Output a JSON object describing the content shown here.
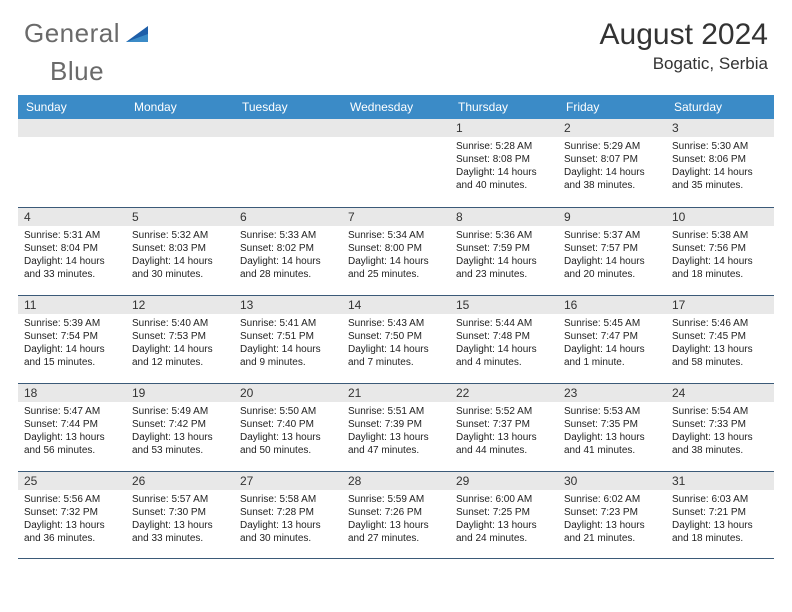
{
  "brand": {
    "word1": "General",
    "word2": "Blue"
  },
  "header": {
    "title": "August 2024",
    "location": "Bogatic, Serbia"
  },
  "colors": {
    "header_blue": "#3b8bc7",
    "cell_gray": "#e8e8e8",
    "border_navy": "#3b5a78",
    "text_dark": "#333333",
    "logo_blue": "#2f7bbf",
    "logo_gray": "#6a6a6a"
  },
  "daysOfWeek": [
    "Sunday",
    "Monday",
    "Tuesday",
    "Wednesday",
    "Thursday",
    "Friday",
    "Saturday"
  ],
  "weeks": [
    [
      {
        "n": "",
        "sr": "",
        "ss": "",
        "dl": ""
      },
      {
        "n": "",
        "sr": "",
        "ss": "",
        "dl": ""
      },
      {
        "n": "",
        "sr": "",
        "ss": "",
        "dl": ""
      },
      {
        "n": "",
        "sr": "",
        "ss": "",
        "dl": ""
      },
      {
        "n": "1",
        "sr": "Sunrise: 5:28 AM",
        "ss": "Sunset: 8:08 PM",
        "dl": "Daylight: 14 hours and 40 minutes."
      },
      {
        "n": "2",
        "sr": "Sunrise: 5:29 AM",
        "ss": "Sunset: 8:07 PM",
        "dl": "Daylight: 14 hours and 38 minutes."
      },
      {
        "n": "3",
        "sr": "Sunrise: 5:30 AM",
        "ss": "Sunset: 8:06 PM",
        "dl": "Daylight: 14 hours and 35 minutes."
      }
    ],
    [
      {
        "n": "4",
        "sr": "Sunrise: 5:31 AM",
        "ss": "Sunset: 8:04 PM",
        "dl": "Daylight: 14 hours and 33 minutes."
      },
      {
        "n": "5",
        "sr": "Sunrise: 5:32 AM",
        "ss": "Sunset: 8:03 PM",
        "dl": "Daylight: 14 hours and 30 minutes."
      },
      {
        "n": "6",
        "sr": "Sunrise: 5:33 AM",
        "ss": "Sunset: 8:02 PM",
        "dl": "Daylight: 14 hours and 28 minutes."
      },
      {
        "n": "7",
        "sr": "Sunrise: 5:34 AM",
        "ss": "Sunset: 8:00 PM",
        "dl": "Daylight: 14 hours and 25 minutes."
      },
      {
        "n": "8",
        "sr": "Sunrise: 5:36 AM",
        "ss": "Sunset: 7:59 PM",
        "dl": "Daylight: 14 hours and 23 minutes."
      },
      {
        "n": "9",
        "sr": "Sunrise: 5:37 AM",
        "ss": "Sunset: 7:57 PM",
        "dl": "Daylight: 14 hours and 20 minutes."
      },
      {
        "n": "10",
        "sr": "Sunrise: 5:38 AM",
        "ss": "Sunset: 7:56 PM",
        "dl": "Daylight: 14 hours and 18 minutes."
      }
    ],
    [
      {
        "n": "11",
        "sr": "Sunrise: 5:39 AM",
        "ss": "Sunset: 7:54 PM",
        "dl": "Daylight: 14 hours and 15 minutes."
      },
      {
        "n": "12",
        "sr": "Sunrise: 5:40 AM",
        "ss": "Sunset: 7:53 PM",
        "dl": "Daylight: 14 hours and 12 minutes."
      },
      {
        "n": "13",
        "sr": "Sunrise: 5:41 AM",
        "ss": "Sunset: 7:51 PM",
        "dl": "Daylight: 14 hours and 9 minutes."
      },
      {
        "n": "14",
        "sr": "Sunrise: 5:43 AM",
        "ss": "Sunset: 7:50 PM",
        "dl": "Daylight: 14 hours and 7 minutes."
      },
      {
        "n": "15",
        "sr": "Sunrise: 5:44 AM",
        "ss": "Sunset: 7:48 PM",
        "dl": "Daylight: 14 hours and 4 minutes."
      },
      {
        "n": "16",
        "sr": "Sunrise: 5:45 AM",
        "ss": "Sunset: 7:47 PM",
        "dl": "Daylight: 14 hours and 1 minute."
      },
      {
        "n": "17",
        "sr": "Sunrise: 5:46 AM",
        "ss": "Sunset: 7:45 PM",
        "dl": "Daylight: 13 hours and 58 minutes."
      }
    ],
    [
      {
        "n": "18",
        "sr": "Sunrise: 5:47 AM",
        "ss": "Sunset: 7:44 PM",
        "dl": "Daylight: 13 hours and 56 minutes."
      },
      {
        "n": "19",
        "sr": "Sunrise: 5:49 AM",
        "ss": "Sunset: 7:42 PM",
        "dl": "Daylight: 13 hours and 53 minutes."
      },
      {
        "n": "20",
        "sr": "Sunrise: 5:50 AM",
        "ss": "Sunset: 7:40 PM",
        "dl": "Daylight: 13 hours and 50 minutes."
      },
      {
        "n": "21",
        "sr": "Sunrise: 5:51 AM",
        "ss": "Sunset: 7:39 PM",
        "dl": "Daylight: 13 hours and 47 minutes."
      },
      {
        "n": "22",
        "sr": "Sunrise: 5:52 AM",
        "ss": "Sunset: 7:37 PM",
        "dl": "Daylight: 13 hours and 44 minutes."
      },
      {
        "n": "23",
        "sr": "Sunrise: 5:53 AM",
        "ss": "Sunset: 7:35 PM",
        "dl": "Daylight: 13 hours and 41 minutes."
      },
      {
        "n": "24",
        "sr": "Sunrise: 5:54 AM",
        "ss": "Sunset: 7:33 PM",
        "dl": "Daylight: 13 hours and 38 minutes."
      }
    ],
    [
      {
        "n": "25",
        "sr": "Sunrise: 5:56 AM",
        "ss": "Sunset: 7:32 PM",
        "dl": "Daylight: 13 hours and 36 minutes."
      },
      {
        "n": "26",
        "sr": "Sunrise: 5:57 AM",
        "ss": "Sunset: 7:30 PM",
        "dl": "Daylight: 13 hours and 33 minutes."
      },
      {
        "n": "27",
        "sr": "Sunrise: 5:58 AM",
        "ss": "Sunset: 7:28 PM",
        "dl": "Daylight: 13 hours and 30 minutes."
      },
      {
        "n": "28",
        "sr": "Sunrise: 5:59 AM",
        "ss": "Sunset: 7:26 PM",
        "dl": "Daylight: 13 hours and 27 minutes."
      },
      {
        "n": "29",
        "sr": "Sunrise: 6:00 AM",
        "ss": "Sunset: 7:25 PM",
        "dl": "Daylight: 13 hours and 24 minutes."
      },
      {
        "n": "30",
        "sr": "Sunrise: 6:02 AM",
        "ss": "Sunset: 7:23 PM",
        "dl": "Daylight: 13 hours and 21 minutes."
      },
      {
        "n": "31",
        "sr": "Sunrise: 6:03 AM",
        "ss": "Sunset: 7:21 PM",
        "dl": "Daylight: 13 hours and 18 minutes."
      }
    ]
  ]
}
